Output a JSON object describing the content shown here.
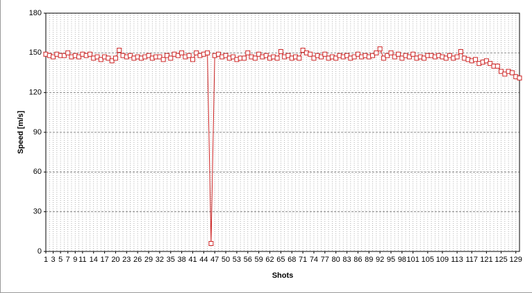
{
  "chart_data": {
    "type": "line",
    "x_label": "Shots",
    "y_label": "Speed [m/s]",
    "x": [
      1,
      2,
      3,
      4,
      5,
      6,
      7,
      8,
      9,
      10,
      11,
      12,
      13,
      14,
      15,
      16,
      17,
      18,
      19,
      20,
      21,
      22,
      23,
      24,
      25,
      26,
      27,
      28,
      29,
      30,
      31,
      32,
      33,
      34,
      35,
      36,
      37,
      38,
      39,
      40,
      41,
      42,
      43,
      44,
      45,
      46,
      47,
      48,
      49,
      50,
      51,
      52,
      53,
      54,
      55,
      56,
      57,
      58,
      59,
      60,
      61,
      62,
      63,
      64,
      65,
      66,
      67,
      68,
      69,
      70,
      71,
      72,
      73,
      74,
      75,
      76,
      77,
      78,
      79,
      80,
      81,
      82,
      83,
      84,
      85,
      86,
      87,
      88,
      89,
      90,
      91,
      92,
      93,
      94,
      95,
      96,
      97,
      98,
      99,
      100,
      101,
      102,
      103,
      104,
      105,
      106,
      107,
      108,
      109,
      110,
      111,
      112,
      113,
      114,
      115,
      116,
      117,
      118,
      119,
      120,
      121,
      122,
      123,
      124,
      125,
      126,
      127,
      128,
      129,
      130
    ],
    "values": [
      149,
      148,
      147,
      149,
      148,
      148,
      150,
      147,
      148,
      147,
      149,
      148,
      149,
      146,
      147,
      145,
      147,
      146,
      144,
      146,
      152,
      148,
      147,
      148,
      146,
      147,
      146,
      147,
      148,
      146,
      147,
      147,
      145,
      148,
      146,
      149,
      148,
      150,
      147,
      148,
      145,
      150,
      148,
      149,
      150,
      6,
      148,
      149,
      147,
      148,
      146,
      147,
      145,
      146,
      146,
      150,
      147,
      146,
      149,
      147,
      148,
      146,
      147,
      146,
      151,
      147,
      148,
      146,
      147,
      146,
      152,
      150,
      149,
      146,
      148,
      147,
      149,
      146,
      147,
      146,
      148,
      147,
      148,
      146,
      147,
      149,
      147,
      148,
      147,
      148,
      150,
      153,
      146,
      148,
      150,
      147,
      149,
      146,
      148,
      147,
      149,
      146,
      147,
      146,
      148,
      148,
      147,
      148,
      147,
      146,
      148,
      146,
      147,
      151,
      146,
      145,
      144,
      145,
      142,
      143,
      144,
      142,
      140,
      140,
      136,
      134,
      136,
      135,
      132,
      131
    ],
    "color": "#cc2222",
    "xlim": [
      1,
      130
    ],
    "xticks": [
      1,
      3,
      5,
      7,
      9,
      11,
      14,
      17,
      20,
      23,
      26,
      29,
      32,
      35,
      38,
      41,
      44,
      47,
      50,
      53,
      56,
      59,
      62,
      65,
      68,
      71,
      74,
      77,
      80,
      83,
      86,
      89,
      92,
      95,
      98,
      101,
      105,
      109,
      113,
      117,
      121,
      125,
      129
    ],
    "ylim": [
      0,
      180
    ],
    "yticks": [
      0,
      30,
      60,
      90,
      120,
      150,
      180
    ],
    "grid": true
  }
}
